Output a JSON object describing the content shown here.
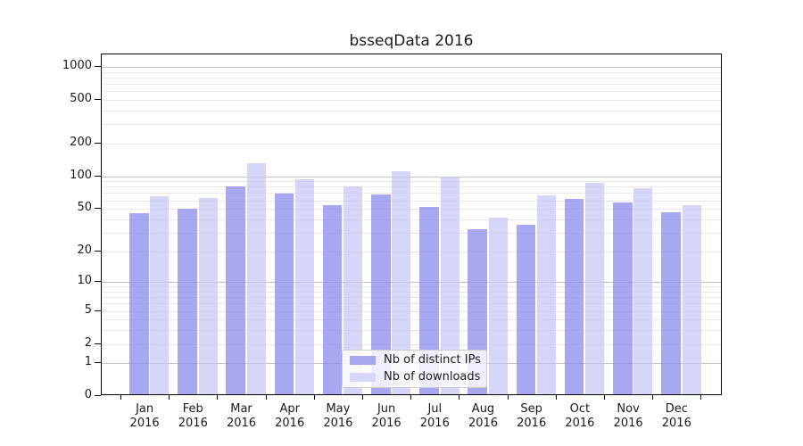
{
  "title": "bsseqData 2016",
  "colors": {
    "axis": "#000000",
    "text": "#1a1a1a",
    "major_grid": "#c4c4c4",
    "minor_grid": "#e8e8e8",
    "distinct_ips_bar": "#a7a7f0",
    "downloads_bar": "#d6d6f8"
  },
  "chart_data": {
    "type": "bar",
    "title": "bsseqData 2016",
    "x_categories": [
      "Jan",
      "Feb",
      "Mar",
      "Apr",
      "May",
      "Jun",
      "Jul",
      "Aug",
      "Sep",
      "Oct",
      "Nov",
      "Dec"
    ],
    "x_year_sublabel": "2016",
    "series": [
      {
        "name": "Nb of distinct IPs",
        "legend_color": "#a7a7f0",
        "bar_fill": "rgba(139,139,235,0.75)",
        "values": [
          44,
          48,
          77,
          67,
          52,
          66,
          50,
          31,
          34,
          60,
          55,
          45
        ]
      },
      {
        "name": "Nb of downloads",
        "legend_color": "#d6d6f8",
        "bar_fill": "rgba(196,196,245,0.7)",
        "values": [
          63,
          61,
          128,
          91,
          78,
          107,
          95,
          40,
          64,
          84,
          75,
          52
        ]
      }
    ],
    "y_ticks": [
      1000,
      500,
      200,
      100,
      50,
      20,
      10,
      5,
      2,
      1,
      0
    ],
    "y_scale": "log10(value+1)",
    "ylim": [
      0,
      1300
    ],
    "grid": {
      "orientation": "horizontal",
      "major_at": [
        1,
        10,
        100,
        1000
      ],
      "minor_at": "2-9 within each decade"
    },
    "legend": {
      "position": "inside-bottom-center",
      "labels": [
        "Nb of distinct IPs",
        "Nb of downloads"
      ]
    }
  }
}
